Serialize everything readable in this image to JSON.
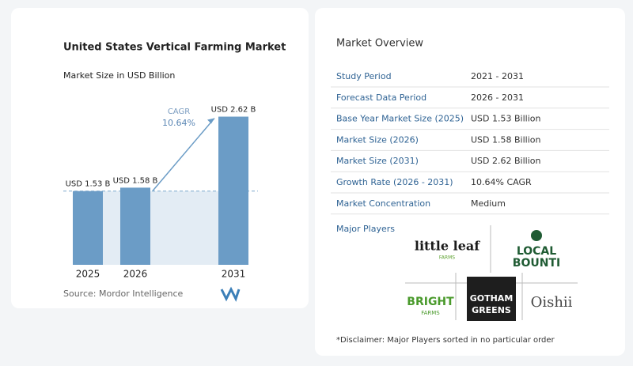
{
  "chart_data": {
    "type": "bar",
    "title": "United States Vertical Farming Market",
    "subtitle": "Market Size in USD Billion",
    "categories": [
      "2025",
      "2026",
      "2031"
    ],
    "values": [
      1.53,
      1.58,
      2.62
    ],
    "value_labels": [
      "USD 1.53 B",
      "USD 1.58 B",
      "USD 2.62 B"
    ],
    "color": "#6b9cc6",
    "ylim": [
      0.45,
      2.8
    ],
    "cagr_label": "CAGR",
    "cagr_value": "10.64%",
    "source": "Source: Mordor Intelligence"
  },
  "overview": {
    "title": "Market Overview",
    "rows": [
      [
        "Study Period",
        "2021 - 2031"
      ],
      [
        "Forecast Data Period",
        "2026 - 2031"
      ],
      [
        "Base Year Market Size (2025)",
        "USD 1.53 Billion"
      ],
      [
        "Market Size (2026)",
        "USD 1.58 Billion"
      ],
      [
        "Market Size (2031)",
        "USD 2.62 Billion"
      ],
      [
        "Growth Rate (2026 - 2031)",
        "10.64% CAGR"
      ],
      [
        "Market Concentration",
        "Medium"
      ]
    ],
    "players_title": "Major Players",
    "players": [
      [
        "little leaf",
        "FARMS"
      ],
      [
        "LOCAL",
        "BOUNTI"
      ],
      [
        "BRIGHT",
        "FARMS"
      ],
      [
        "GOTHAM",
        "GREENS"
      ],
      [
        "Oishii"
      ]
    ],
    "disclaimer": "*Disclaimer: Major Players sorted in no particular order"
  }
}
